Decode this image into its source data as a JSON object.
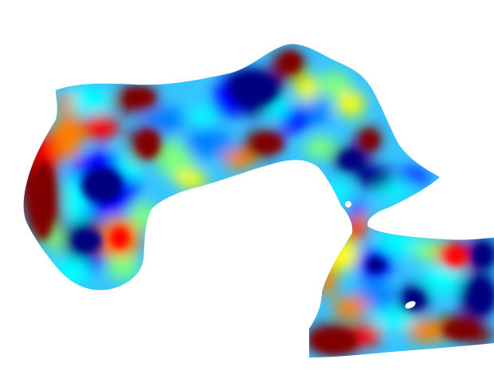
{
  "figure": {
    "background": "#ffffff",
    "colormap": "jet",
    "colormap_stops": [
      "#00007f",
      "#0000ff",
      "#007fff",
      "#00ffff",
      "#7fff7f",
      "#ffff00",
      "#ff7f00",
      "#ff0000",
      "#7f0000"
    ],
    "base_color": "#36c4ff",
    "has_axes": false,
    "has_colorbar": false,
    "has_title": false,
    "holes": 2
  }
}
